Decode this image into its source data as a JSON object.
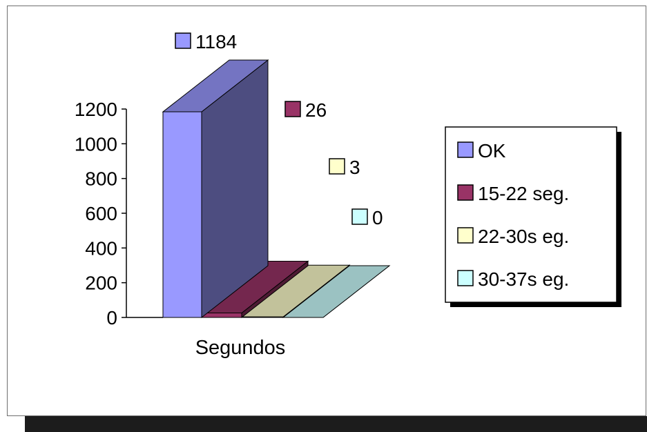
{
  "chart_data": {
    "type": "bar",
    "style": "3d",
    "categories": [
      "Segundos"
    ],
    "xlabel": "Segundos",
    "ylim": [
      0,
      1200
    ],
    "y_ticks": [
      "0",
      "200",
      "400",
      "600",
      "800",
      "1000",
      "1200"
    ],
    "grid": false,
    "legend_position": "right",
    "series": [
      {
        "name": "OK",
        "values": [
          1184
        ],
        "label": "1184",
        "color": "#9999ff"
      },
      {
        "name": "15-22 seg.",
        "values": [
          26
        ],
        "label": "26",
        "color": "#993366"
      },
      {
        "name": "22-30s eg.",
        "values": [
          3
        ],
        "label": "3",
        "color": "#ffffcc"
      },
      {
        "name": "30-37s eg.",
        "values": [
          0
        ],
        "label": "0",
        "color": "#ccffff"
      }
    ]
  }
}
